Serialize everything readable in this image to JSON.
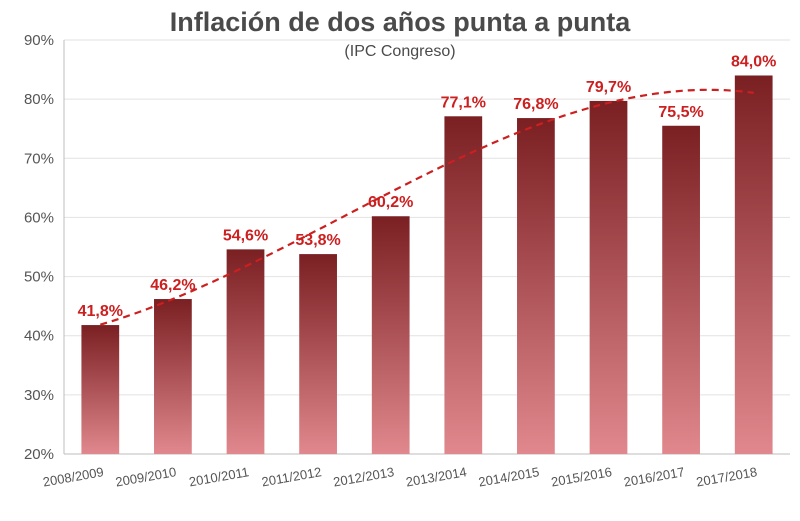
{
  "chart_data": {
    "type": "bar",
    "title": "Inflación de dos años punta a punta",
    "subtitle": "(IPC Congreso)",
    "xlabel": "",
    "ylabel": "",
    "ylim": [
      20,
      90
    ],
    "yticks": [
      "20%",
      "30%",
      "40%",
      "50%",
      "60%",
      "70%",
      "80%",
      "90%"
    ],
    "ytick_values": [
      20,
      30,
      40,
      50,
      60,
      70,
      80,
      90
    ],
    "categories": [
      "2008/2009",
      "2009/2010",
      "2010/2011",
      "2011/2012",
      "2012/2013",
      "2013/2014",
      "2014/2015",
      "2015/2016",
      "2016/2017",
      "2017/2018"
    ],
    "values": [
      41.8,
      46.2,
      54.6,
      53.8,
      60.2,
      77.1,
      76.8,
      79.7,
      75.5,
      84.0
    ],
    "data_labels": [
      "41,8%",
      "46,2%",
      "54,6%",
      "53,8%",
      "60,2%",
      "77,1%",
      "76,8%",
      "79,7%",
      "75,5%",
      "84,0%"
    ],
    "trendline": "polynomial dashed",
    "grid": true,
    "colors": {
      "bar_top": "#7a1f22",
      "bar_bottom": "#e0888d",
      "label": "#cc1f1f",
      "trend": "#cc1f1f"
    }
  }
}
